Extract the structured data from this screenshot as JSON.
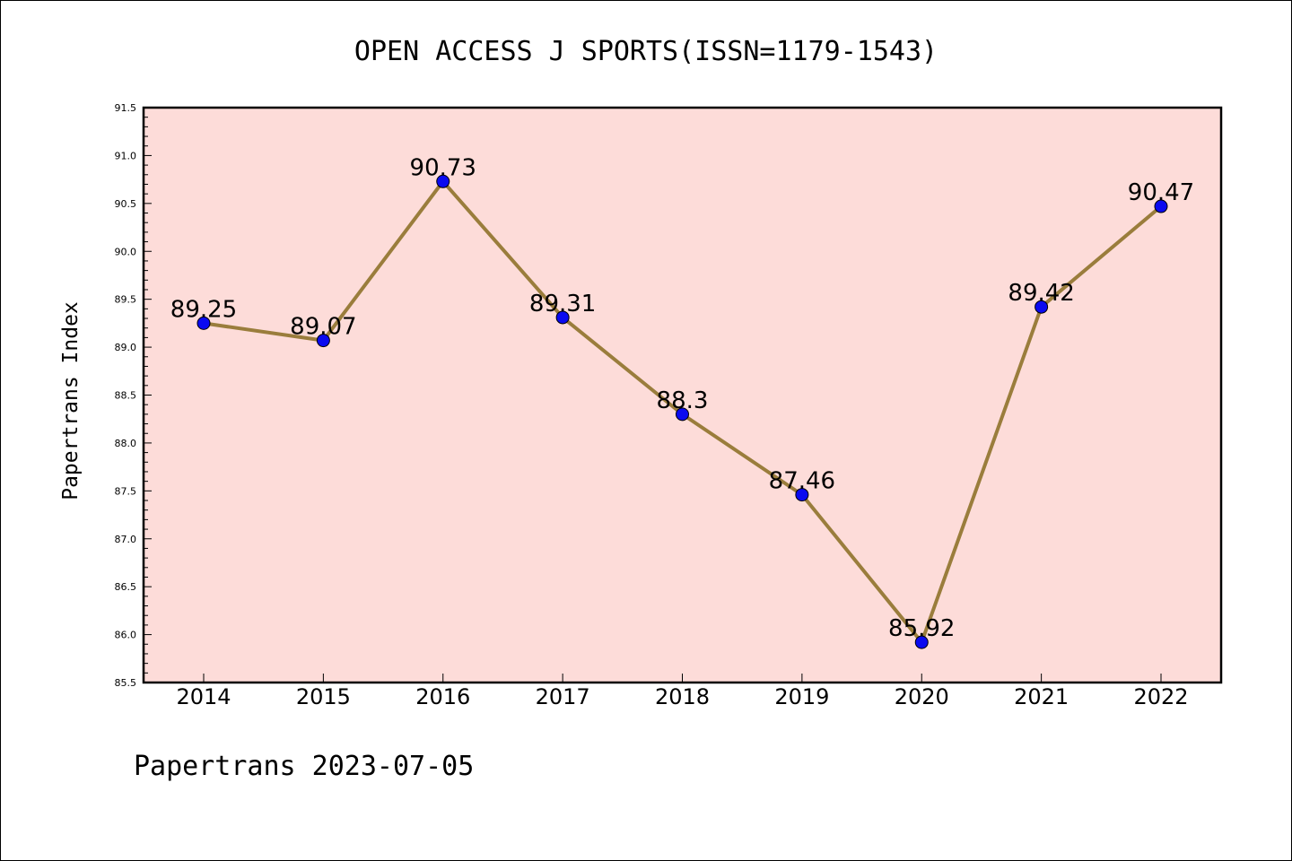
{
  "chart_data": {
    "type": "line",
    "title": "OPEN ACCESS J SPORTS(ISSN=1179-1543)",
    "ylabel": "Papertrans Index",
    "xlabel": "",
    "categories": [
      "2014",
      "2015",
      "2016",
      "2017",
      "2018",
      "2019",
      "2020",
      "2021",
      "2022"
    ],
    "values": [
      89.25,
      89.07,
      90.73,
      89.31,
      88.3,
      87.46,
      85.92,
      89.42,
      90.47
    ],
    "data_labels": [
      "89.25",
      "89.07",
      "90.73",
      "89.31",
      "88.3",
      "87.46",
      "85.92",
      "89.42",
      "90.47"
    ],
    "ylim": [
      85.5,
      91.5
    ],
    "yticks": [
      "85.5",
      "86.0",
      "86.5",
      "87.0",
      "87.5",
      "88.0",
      "88.5",
      "89.0",
      "89.5",
      "90.0",
      "90.5",
      "91.0",
      "91.5"
    ],
    "grid": false,
    "legend": "none",
    "colors": {
      "plot_background": "#fddcd9",
      "line": "#9a7d3c",
      "marker": "#0a0af0"
    }
  },
  "footer": "Papertrans 2023-07-05"
}
